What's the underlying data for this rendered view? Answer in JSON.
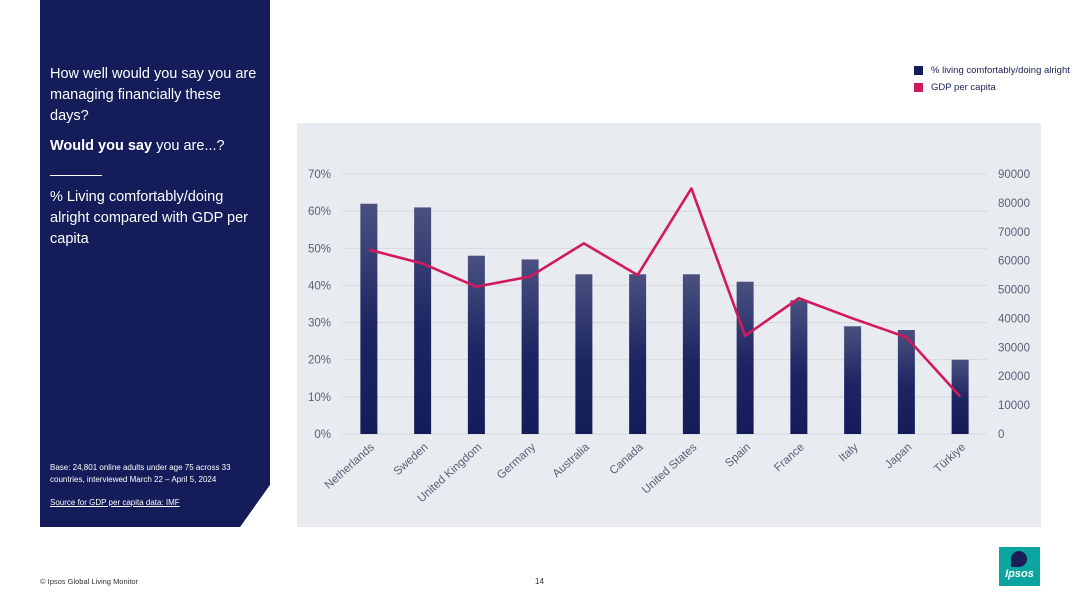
{
  "side": {
    "question": "How well would you say you are managing financially these days?",
    "sub_bold": "Would you say",
    "sub_rest": " you are...?",
    "description": "% Living comfortably/doing alright compared with GDP per capita",
    "base_note": "Base: 24,801 online adults under age 75 across 33 countries, interviewed March 22 – April 5, 2024",
    "source_link": "Source for GDP per capita data: IMF"
  },
  "legend": {
    "items": [
      {
        "label": "% living comfortably/doing alright",
        "color": "#141c5a"
      },
      {
        "label": "GDP per capita",
        "color": "#d3195e"
      }
    ]
  },
  "footer": {
    "left_text": "© Ipsos Global Living Monitor",
    "page_number": "14",
    "logo_text": "Ipsos"
  },
  "colors": {
    "bar": "#141c5a",
    "line": "#d3195e",
    "panel": "#141c5a",
    "logo": "#0aa5a0"
  },
  "chart_data": {
    "type": "bar",
    "categories": [
      "Netherlands",
      "Sweden",
      "United Kingdom",
      "Germany",
      "Australia",
      "Canada",
      "United States",
      "Spain",
      "France",
      "Italy",
      "Japan",
      "Türkiye"
    ],
    "series": [
      {
        "name": "% living comfortably/doing alright",
        "type": "bar",
        "axis": "left",
        "values": [
          62,
          61,
          48,
          47,
          43,
          43,
          43,
          41,
          36,
          29,
          28,
          20
        ]
      },
      {
        "name": "GDP per capita",
        "type": "line",
        "axis": "right",
        "values": [
          63800,
          59000,
          51000,
          54500,
          66000,
          55000,
          85000,
          34000,
          47000,
          40000,
          33500,
          13000
        ]
      }
    ],
    "y_left": {
      "min": 0,
      "max": 70,
      "ticks": [
        0,
        10,
        20,
        30,
        40,
        50,
        60,
        70
      ],
      "tick_labels": [
        "0%",
        "10%",
        "20%",
        "30%",
        "40%",
        "50%",
        "60%",
        "70%"
      ]
    },
    "y_right": {
      "min": 0,
      "max": 90000,
      "ticks": [
        0,
        10000,
        20000,
        30000,
        40000,
        50000,
        60000,
        70000,
        80000,
        90000
      ],
      "tick_labels": [
        "0",
        "10000",
        "20000",
        "30000",
        "40000",
        "50000",
        "60000",
        "70000",
        "80000",
        "90000"
      ]
    },
    "grid": true,
    "legend_position": "top-right"
  }
}
